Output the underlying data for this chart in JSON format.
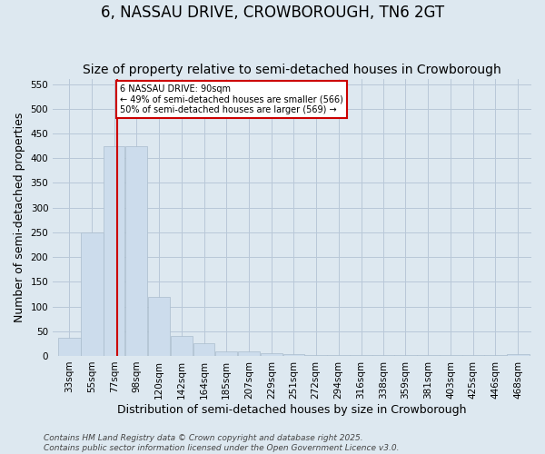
{
  "title": "6, NASSAU DRIVE, CROWBOROUGH, TN6 2GT",
  "subtitle": "Size of property relative to semi-detached houses in Crowborough",
  "xlabel": "Distribution of semi-detached houses by size in Crowborough",
  "ylabel": "Number of semi-detached properties",
  "footnote": "Contains HM Land Registry data © Crown copyright and database right 2025.\nContains public sector information licensed under the Open Government Licence v3.0.",
  "bar_left_edges": [
    33,
    55,
    77,
    98,
    120,
    142,
    164,
    185,
    207,
    229,
    251,
    272,
    294,
    316,
    338,
    359,
    381,
    403,
    425,
    446,
    468
  ],
  "bar_widths": [
    22,
    22,
    21,
    22,
    22,
    22,
    21,
    22,
    22,
    22,
    21,
    22,
    22,
    22,
    21,
    22,
    22,
    22,
    21,
    22,
    22
  ],
  "bar_heights": [
    37,
    250,
    425,
    425,
    120,
    40,
    25,
    10,
    10,
    5,
    3,
    2,
    2,
    1,
    1,
    1,
    1,
    1,
    1,
    1,
    3
  ],
  "bar_color": "#ccdcec",
  "bar_edge_color": "#aabccc",
  "grid_color": "#b8c8d8",
  "background_color": "#dde8f0",
  "property_size": 90,
  "vline_color": "#cc0000",
  "annotation_text": "6 NASSAU DRIVE: 90sqm\n← 49% of semi-detached houses are smaller (566)\n50% of semi-detached houses are larger (569) →",
  "annotation_box_color": "#ffffff",
  "annotation_box_edge": "#cc0000",
  "ylim": [
    0,
    560
  ],
  "yticks": [
    0,
    50,
    100,
    150,
    200,
    250,
    300,
    350,
    400,
    450,
    500,
    550
  ],
  "xlim_left": 28,
  "xlim_right": 492,
  "tick_labels": [
    "33sqm",
    "55sqm",
    "77sqm",
    "98sqm",
    "120sqm",
    "142sqm",
    "164sqm",
    "185sqm",
    "207sqm",
    "229sqm",
    "251sqm",
    "272sqm",
    "294sqm",
    "316sqm",
    "338sqm",
    "359sqm",
    "381sqm",
    "403sqm",
    "425sqm",
    "446sqm",
    "468sqm"
  ],
  "title_fontsize": 12,
  "subtitle_fontsize": 10,
  "label_fontsize": 9,
  "tick_fontsize": 7.5,
  "footnote_fontsize": 6.5
}
